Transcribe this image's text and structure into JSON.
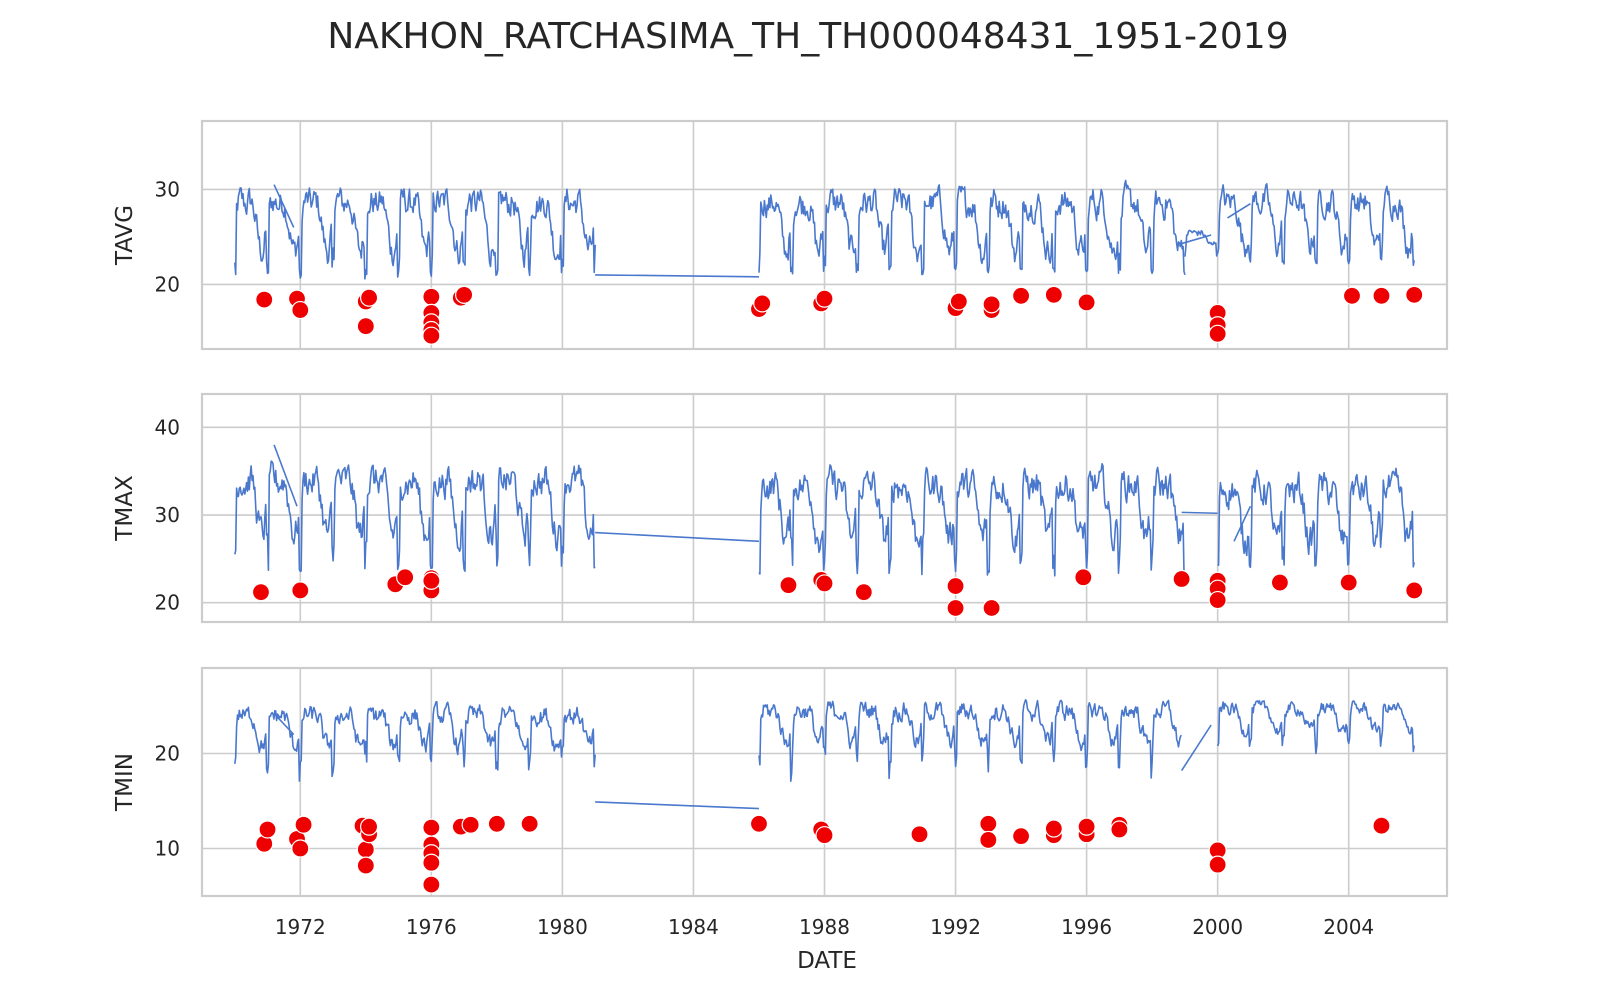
{
  "chart_data": {
    "type": "line",
    "title": "NAKHON_RATCHASIMA_TH_TH000048431_1951-2019",
    "xlabel": "DATE",
    "x_ticks": [
      "1972",
      "1976",
      "1980",
      "1984",
      "1988",
      "1992",
      "1996",
      "2000",
      "2004"
    ],
    "x_range": [
      "1969-01",
      "2007-01"
    ],
    "grid": true,
    "line_color": "#4a78cc",
    "outlier_color": "#ee0000",
    "panels": [
      {
        "ylabel": "TAVG",
        "ylim": [
          13.2,
          37.2
        ],
        "y_ticks": [
          20,
          30
        ],
        "series": [
          {
            "segments": [
              {
                "start": 1970.0,
                "end": 1981.0,
                "base": 27.0,
                "amp": 5.5,
                "low": 20.5
              },
              {
                "start": 1986.0,
                "end": 1999.0,
                "base": 27.0,
                "amp": 5.5,
                "low": 21.0
              },
              {
                "start": 1999.0,
                "end": 2000.0,
                "base": 25.0,
                "amp": 1.5,
                "low": 21.0
              },
              {
                "start": 2000.0,
                "end": 2006.0,
                "base": 27.3,
                "amp": 5.0,
                "low": 22.0
              }
            ],
            "gap_links": [
              {
                "x1": 1971.2,
                "y1": 30.5,
                "x2": 1971.8,
                "y2": 26.0
              },
              {
                "x1": 1981.0,
                "y1": 21.0,
                "x2": 1986.0,
                "y2": 20.8
              },
              {
                "x1": 1998.9,
                "y1": 24.3,
                "x2": 1999.8,
                "y2": 25.2
              },
              {
                "x1": 2000.3,
                "y1": 27.0,
                "x2": 2001.0,
                "y2": 28.5
              }
            ]
          }
        ],
        "outliers": [
          [
            1970.9,
            18.4
          ],
          [
            1971.9,
            18.5
          ],
          [
            1972.0,
            17.3
          ],
          [
            1974.0,
            18.2
          ],
          [
            1974.1,
            18.6
          ],
          [
            1974.0,
            15.6
          ],
          [
            1976.0,
            18.7
          ],
          [
            1976.0,
            17.0
          ],
          [
            1976.0,
            16.0
          ],
          [
            1976.0,
            15.2
          ],
          [
            1976.0,
            14.6
          ],
          [
            1976.9,
            18.6
          ],
          [
            1977.0,
            18.9
          ],
          [
            1986.0,
            17.4
          ],
          [
            1986.1,
            18.0
          ],
          [
            1987.9,
            18.0
          ],
          [
            1988.0,
            18.5
          ],
          [
            1992.0,
            17.5
          ],
          [
            1992.1,
            18.2
          ],
          [
            1993.1,
            17.3
          ],
          [
            1993.1,
            17.9
          ],
          [
            1994.0,
            18.8
          ],
          [
            1995.0,
            18.9
          ],
          [
            1996.0,
            18.1
          ],
          [
            2000.0,
            17.0
          ],
          [
            2000.0,
            15.7
          ],
          [
            2000.0,
            14.8
          ],
          [
            2004.1,
            18.8
          ],
          [
            2005.0,
            18.8
          ],
          [
            2006.0,
            18.9
          ]
        ]
      },
      {
        "ylabel": "TMAX",
        "ylim": [
          17.8,
          43.8
        ],
        "y_ticks": [
          20,
          30,
          40
        ],
        "series": [
          {
            "segments": [
              {
                "start": 1970.0,
                "end": 1981.0,
                "base": 32.0,
                "amp": 6.5,
                "low": 23.5
              },
              {
                "start": 1986.0,
                "end": 1999.0,
                "base": 31.5,
                "amp": 6.5,
                "low": 23.0
              },
              {
                "start": 2000.0,
                "end": 2006.0,
                "base": 31.0,
                "amp": 6.5,
                "low": 24.0
              }
            ],
            "gap_links": [
              {
                "x1": 1971.2,
                "y1": 38.0,
                "x2": 1971.9,
                "y2": 31.0
              },
              {
                "x1": 1981.0,
                "y1": 28.0,
                "x2": 1986.0,
                "y2": 27.0
              },
              {
                "x1": 1998.9,
                "y1": 30.3,
                "x2": 2000.0,
                "y2": 30.2
              },
              {
                "x1": 2000.5,
                "y1": 27.0,
                "x2": 2001.0,
                "y2": 31.0
              }
            ]
          }
        ],
        "outliers": [
          [
            1970.8,
            21.2
          ],
          [
            1972.0,
            21.4
          ],
          [
            1974.9,
            22.1
          ],
          [
            1975.2,
            22.9
          ],
          [
            1976.0,
            22.8
          ],
          [
            1976.0,
            22.0
          ],
          [
            1976.0,
            21.4
          ],
          [
            1976.0,
            22.5
          ],
          [
            1986.9,
            22.0
          ],
          [
            1987.9,
            22.6
          ],
          [
            1988.0,
            22.2
          ],
          [
            1989.2,
            21.2
          ],
          [
            1992.0,
            21.9
          ],
          [
            1992.0,
            19.4
          ],
          [
            1993.1,
            19.4
          ],
          [
            1995.9,
            22.9
          ],
          [
            1998.9,
            22.7
          ],
          [
            2000.0,
            22.5
          ],
          [
            2000.0,
            21.6
          ],
          [
            2000.0,
            20.3
          ],
          [
            2001.9,
            22.3
          ],
          [
            2004.0,
            22.3
          ],
          [
            2006.0,
            21.4
          ]
        ]
      },
      {
        "ylabel": "TMIN",
        "ylim": [
          5.0,
          29.0
        ],
        "y_ticks": [
          10,
          20
        ],
        "series": [
          {
            "segments": [
              {
                "start": 1970.0,
                "end": 1981.0,
                "base": 23.0,
                "amp": 3.5,
                "low": 14.0
              },
              {
                "start": 1986.0,
                "end": 1998.9,
                "base": 23.5,
                "amp": 3.5,
                "low": 14.5
              },
              {
                "start": 2000.0,
                "end": 2006.0,
                "base": 24.0,
                "amp": 2.5,
                "low": 16.0
              }
            ],
            "gap_links": [
              {
                "x1": 1971.2,
                "y1": 24.2,
                "x2": 1971.8,
                "y2": 22.0
              },
              {
                "x1": 1981.0,
                "y1": 14.9,
                "x2": 1986.0,
                "y2": 14.2
              },
              {
                "x1": 1998.9,
                "y1": 18.2,
                "x2": 1999.8,
                "y2": 23.0
              }
            ]
          }
        ],
        "outliers": [
          [
            1970.9,
            10.5
          ],
          [
            1971.0,
            12.0
          ],
          [
            1971.9,
            11.0
          ],
          [
            1972.0,
            10.0
          ],
          [
            1972.1,
            12.5
          ],
          [
            1973.9,
            12.4
          ],
          [
            1974.0,
            9.9
          ],
          [
            1974.0,
            8.2
          ],
          [
            1974.1,
            11.5
          ],
          [
            1974.1,
            12.3
          ],
          [
            1976.0,
            12.2
          ],
          [
            1976.0,
            10.4
          ],
          [
            1976.0,
            9.5
          ],
          [
            1976.0,
            8.5
          ],
          [
            1976.0,
            6.2
          ],
          [
            1976.9,
            12.3
          ],
          [
            1977.2,
            12.5
          ],
          [
            1978.0,
            12.6
          ],
          [
            1979.0,
            12.6
          ],
          [
            1986.0,
            12.6
          ],
          [
            1987.9,
            12.0
          ],
          [
            1988.0,
            11.4
          ],
          [
            1990.9,
            11.5
          ],
          [
            1993.0,
            12.6
          ],
          [
            1993.0,
            10.9
          ],
          [
            1994.0,
            11.3
          ],
          [
            1995.0,
            11.4
          ],
          [
            1995.0,
            12.1
          ],
          [
            1996.0,
            11.5
          ],
          [
            1996.0,
            12.3
          ],
          [
            1997.0,
            12.5
          ],
          [
            1997.0,
            12.0
          ],
          [
            2000.0,
            9.8
          ],
          [
            2000.0,
            8.3
          ],
          [
            2005.0,
            12.4
          ]
        ]
      }
    ]
  }
}
